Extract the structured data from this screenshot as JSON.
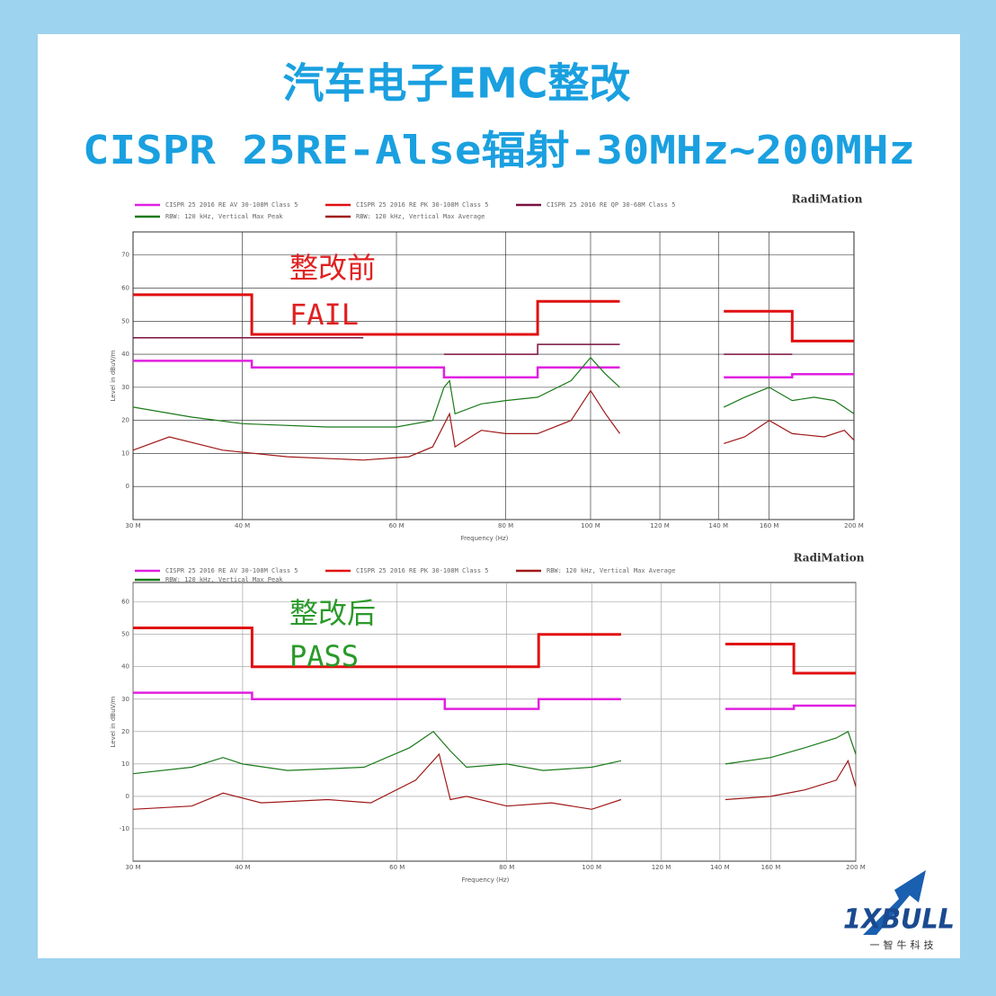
{
  "header": {
    "title": "汽车电子EMC整改",
    "subtitle": "CISPR 25RE-Alse辐射-30MHz~200MHz"
  },
  "logo": {
    "mark": "1XBULL",
    "company": "一智牛科技"
  },
  "chart_data": [
    {
      "type": "line",
      "brand": "RadiMation",
      "annotations": [
        "整改前",
        "FAIL"
      ],
      "annotation_color": "#e02020",
      "x_label": "Frequency (Hz)",
      "y_label": "Level in dBuV/m",
      "xscale": "log",
      "grid": true,
      "xlim": [
        30,
        200
      ],
      "ylim": [
        -10,
        77
      ],
      "xticks": [
        {
          "value": 30,
          "label": "30 M"
        },
        {
          "value": 40,
          "label": "40 M"
        },
        {
          "value": 60,
          "label": "60 M"
        },
        {
          "value": 80,
          "label": "80 M"
        },
        {
          "value": 100,
          "label": "100 M"
        },
        {
          "value": 120,
          "label": "120 M"
        },
        {
          "value": 140,
          "label": "140 M"
        },
        {
          "value": 160,
          "label": "160 M"
        },
        {
          "value": 200,
          "label": "200 M"
        }
      ],
      "yticks": [
        0,
        10,
        20,
        30,
        40,
        50,
        60,
        70
      ],
      "series": [
        {
          "name": "CISPR 25 2016 RE AV 30-108M Class 5",
          "color": "#e020e0",
          "width": 2.5,
          "x": [
            30,
            41,
            41,
            68,
            68,
            87,
            87,
            108,
            null,
            142,
            170,
            170,
            200
          ],
          "values": [
            38,
            38,
            36,
            36,
            33,
            33,
            36,
            36,
            null,
            33,
            33,
            34,
            34
          ]
        },
        {
          "name": "CISPR 25 2016 RE PK 30-108M Class 5",
          "color": "#e01010",
          "width": 3,
          "x": [
            30,
            41,
            41,
            87,
            87,
            108,
            null,
            142,
            170,
            170,
            200
          ],
          "values": [
            58,
            58,
            46,
            46,
            56,
            56,
            null,
            53,
            53,
            44,
            44
          ]
        },
        {
          "name": "CISPR 25 2016 RE QP 30-68M Class 5",
          "color": "#7a1040",
          "width": 1.5,
          "x": [
            30,
            55,
            null,
            68,
            87,
            87,
            108,
            null,
            142,
            170
          ],
          "values": [
            45,
            45,
            null,
            40,
            40,
            43,
            43,
            null,
            40,
            40
          ]
        },
        {
          "name": "RBW: 120 kHz, Vertical Max Peak",
          "color": "#1a7a1a",
          "width": 1.2,
          "x": [
            30,
            35,
            40,
            50,
            60,
            66,
            68,
            69,
            70,
            75,
            80,
            87,
            95,
            100,
            104,
            108,
            null,
            142,
            150,
            160,
            170,
            180,
            190,
            200
          ],
          "values": [
            24,
            21,
            19,
            18,
            18,
            20,
            30,
            32,
            22,
            25,
            26,
            27,
            32,
            39,
            34,
            30,
            null,
            24,
            27,
            30,
            26,
            27,
            26,
            22
          ]
        },
        {
          "name": "RBW: 120 kHz, Vertical Max Average",
          "color": "#a01818",
          "width": 1.2,
          "x": [
            30,
            33,
            38,
            45,
            55,
            62,
            66,
            69,
            70,
            75,
            80,
            87,
            95,
            100,
            104,
            108,
            null,
            142,
            150,
            160,
            170,
            185,
            195,
            200
          ],
          "values": [
            11,
            15,
            11,
            9,
            8,
            9,
            12,
            22,
            12,
            17,
            16,
            16,
            20,
            29,
            22,
            16,
            null,
            13,
            15,
            20,
            16,
            15,
            17,
            14
          ]
        }
      ]
    },
    {
      "type": "line",
      "brand": "RadiMation",
      "annotations": [
        "整改后",
        "PASS"
      ],
      "annotation_color": "#2a9a2a",
      "x_label": "Frequency (Hz)",
      "y_label": "Level in dBuV/m",
      "xscale": "log",
      "grid": true,
      "xlim": [
        30,
        200
      ],
      "ylim": [
        -20,
        66
      ],
      "xticks": [
        {
          "value": 30,
          "label": "30 M"
        },
        {
          "value": 40,
          "label": "40 M"
        },
        {
          "value": 60,
          "label": "60 M"
        },
        {
          "value": 80,
          "label": "80 M"
        },
        {
          "value": 100,
          "label": "100 M"
        },
        {
          "value": 120,
          "label": "120 M"
        },
        {
          "value": 140,
          "label": "140 M"
        },
        {
          "value": 160,
          "label": "160 M"
        },
        {
          "value": 200,
          "label": "200 M"
        }
      ],
      "yticks": [
        -10,
        0,
        10,
        20,
        30,
        40,
        50,
        60
      ],
      "series": [
        {
          "name": "CISPR 25 2016 RE AV 30-108M Class 5",
          "color": "#e020e0",
          "width": 2.5,
          "x": [
            30,
            41,
            41,
            68,
            68,
            87,
            87,
            108,
            null,
            142,
            170,
            170,
            200
          ],
          "values": [
            32,
            32,
            30,
            30,
            27,
            27,
            30,
            30,
            null,
            27,
            27,
            28,
            28
          ]
        },
        {
          "name": "CISPR 25 2016 RE PK 30-108M Class 5",
          "color": "#e01010",
          "width": 3,
          "x": [
            30,
            41,
            41,
            87,
            87,
            108,
            null,
            142,
            170,
            170,
            200
          ],
          "values": [
            52,
            52,
            40,
            40,
            50,
            50,
            null,
            47,
            47,
            38,
            38
          ]
        },
        {
          "name": "RBW: 120 kHz, Vertical Max Average",
          "color": "#a01818",
          "width": 1.2,
          "x": [
            30,
            35,
            38,
            42,
            50,
            56,
            63,
            67,
            69,
            72,
            80,
            90,
            100,
            108,
            null,
            142,
            160,
            175,
            190,
            196,
            200
          ],
          "values": [
            -4,
            -3,
            1,
            -2,
            -1,
            -2,
            5,
            13,
            -1,
            0,
            -3,
            -2,
            -4,
            -1,
            null,
            -1,
            0,
            2,
            5,
            11,
            3
          ]
        },
        {
          "name": "RBW: 120 kHz, Vertical Max Peak",
          "color": "#1a7a1a",
          "width": 1.2,
          "x": [
            30,
            35,
            38,
            40,
            45,
            55,
            62,
            66,
            69,
            72,
            80,
            88,
            100,
            108,
            null,
            142,
            160,
            175,
            190,
            196,
            200
          ],
          "values": [
            7,
            9,
            12,
            10,
            8,
            9,
            15,
            20,
            14,
            9,
            10,
            8,
            9,
            11,
            null,
            10,
            12,
            15,
            18,
            20,
            13
          ]
        }
      ]
    }
  ]
}
